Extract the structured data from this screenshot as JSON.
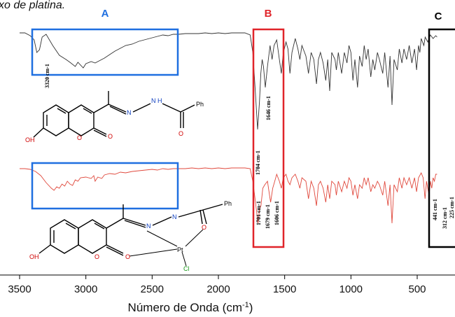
{
  "caption": "xo de platina.",
  "chart_data": {
    "type": "line",
    "xlabel": "Número de Onda (cm-1)",
    "xlim": [
      3500,
      350
    ],
    "x_reversed": true,
    "x_ticks": [
      3500,
      3000,
      2500,
      2000,
      1500,
      1000,
      500
    ],
    "series": [
      {
        "id": "ligand",
        "color": "#333333",
        "points": [
          [
            3500,
            2
          ],
          [
            3460,
            2
          ],
          [
            3420,
            6
          ],
          [
            3390,
            12
          ],
          [
            3370,
            30
          ],
          [
            3350,
            26
          ],
          [
            3330,
            8
          ],
          [
            3300,
            4
          ],
          [
            3250,
            20
          ],
          [
            3200,
            34
          ],
          [
            3150,
            40
          ],
          [
            3120,
            44
          ],
          [
            3080,
            50
          ],
          [
            3060,
            44
          ],
          [
            3020,
            52
          ],
          [
            3000,
            46
          ],
          [
            2960,
            43
          ],
          [
            2930,
            45
          ],
          [
            2900,
            42
          ],
          [
            2860,
            38
          ],
          [
            2820,
            33
          ],
          [
            2780,
            28
          ],
          [
            2740,
            24
          ],
          [
            2700,
            20
          ],
          [
            2650,
            18
          ],
          [
            2600,
            14
          ],
          [
            2560,
            12
          ],
          [
            2500,
            9
          ],
          [
            2460,
            7
          ],
          [
            2420,
            5
          ],
          [
            2380,
            6
          ],
          [
            2340,
            4
          ],
          [
            2300,
            4
          ],
          [
            2250,
            3
          ],
          [
            2200,
            3
          ],
          [
            2150,
            3
          ],
          [
            2100,
            2
          ],
          [
            2050,
            3
          ],
          [
            2000,
            2
          ],
          [
            1950,
            3
          ],
          [
            1900,
            2
          ],
          [
            1850,
            2
          ],
          [
            1800,
            2
          ],
          [
            1760,
            5
          ],
          [
            1740,
            30
          ],
          [
            1720,
            90
          ],
          [
            1704,
            140
          ],
          [
            1690,
            100
          ],
          [
            1680,
            60
          ],
          [
            1670,
            40
          ],
          [
            1660,
            50
          ],
          [
            1646,
            80
          ],
          [
            1630,
            50
          ],
          [
            1610,
            20
          ],
          [
            1595,
            40
          ],
          [
            1580,
            20
          ],
          [
            1560,
            12
          ],
          [
            1540,
            40
          ],
          [
            1525,
            60
          ],
          [
            1510,
            30
          ],
          [
            1490,
            15
          ],
          [
            1475,
            25
          ],
          [
            1460,
            60
          ],
          [
            1445,
            30
          ],
          [
            1420,
            10
          ],
          [
            1400,
            25
          ],
          [
            1385,
            40
          ],
          [
            1370,
            20
          ],
          [
            1340,
            35
          ],
          [
            1320,
            60
          ],
          [
            1300,
            30
          ],
          [
            1280,
            40
          ],
          [
            1260,
            75
          ],
          [
            1245,
            40
          ],
          [
            1230,
            30
          ],
          [
            1210,
            45
          ],
          [
            1190,
            70
          ],
          [
            1175,
            40
          ],
          [
            1160,
            85
          ],
          [
            1145,
            30
          ],
          [
            1120,
            40
          ],
          [
            1110,
            55
          ],
          [
            1095,
            30
          ],
          [
            1070,
            60
          ],
          [
            1050,
            30
          ],
          [
            1030,
            45
          ],
          [
            1015,
            20
          ],
          [
            1000,
            30
          ],
          [
            985,
            70
          ],
          [
            970,
            40
          ],
          [
            950,
            80
          ],
          [
            935,
            35
          ],
          [
            915,
            50
          ],
          [
            900,
            20
          ],
          [
            885,
            40
          ],
          [
            870,
            25
          ],
          [
            850,
            65
          ],
          [
            835,
            40
          ],
          [
            820,
            55
          ],
          [
            800,
            30
          ],
          [
            785,
            40
          ],
          [
            760,
            60
          ],
          [
            745,
            30
          ],
          [
            720,
            80
          ],
          [
            705,
            35
          ],
          [
            690,
            105
          ],
          [
            675,
            40
          ],
          [
            650,
            55
          ],
          [
            635,
            25
          ],
          [
            615,
            45
          ],
          [
            600,
            25
          ],
          [
            580,
            40
          ],
          [
            560,
            20
          ],
          [
            540,
            45
          ],
          [
            520,
            25
          ],
          [
            505,
            55
          ],
          [
            490,
            20
          ],
          [
            480,
            30
          ],
          [
            470,
            10
          ],
          [
            450,
            20
          ],
          [
            440,
            8
          ],
          [
            420,
            15
          ],
          [
            400,
            5
          ],
          [
            380,
            10
          ],
          [
            360,
            6
          ],
          [
            350,
            8
          ]
        ]
      },
      {
        "id": "complex",
        "color": "#e0483c",
        "points": [
          [
            3500,
            2
          ],
          [
            3460,
            2
          ],
          [
            3420,
            3
          ],
          [
            3380,
            6
          ],
          [
            3340,
            12
          ],
          [
            3300,
            22
          ],
          [
            3260,
            30
          ],
          [
            3240,
            33
          ],
          [
            3220,
            28
          ],
          [
            3200,
            30
          ],
          [
            3180,
            24
          ],
          [
            3160,
            27
          ],
          [
            3140,
            20
          ],
          [
            3120,
            24
          ],
          [
            3100,
            26
          ],
          [
            3080,
            18
          ],
          [
            3060,
            20
          ],
          [
            3040,
            15
          ],
          [
            3000,
            14
          ],
          [
            2960,
            16
          ],
          [
            2940,
            12
          ],
          [
            2930,
            20
          ],
          [
            2910,
            14
          ],
          [
            2880,
            16
          ],
          [
            2860,
            11
          ],
          [
            2820,
            9
          ],
          [
            2780,
            10
          ],
          [
            2740,
            7
          ],
          [
            2700,
            8
          ],
          [
            2650,
            6
          ],
          [
            2600,
            5
          ],
          [
            2550,
            4
          ],
          [
            2500,
            3
          ],
          [
            2460,
            4
          ],
          [
            2420,
            2
          ],
          [
            2380,
            3
          ],
          [
            2340,
            2
          ],
          [
            2300,
            2
          ],
          [
            2250,
            2
          ],
          [
            2200,
            1
          ],
          [
            2150,
            2
          ],
          [
            2100,
            1
          ],
          [
            2050,
            2
          ],
          [
            2000,
            1
          ],
          [
            1950,
            2
          ],
          [
            1900,
            1
          ],
          [
            1850,
            1
          ],
          [
            1800,
            1
          ],
          [
            1760,
            2
          ],
          [
            1740,
            20
          ],
          [
            1720,
            50
          ],
          [
            1701,
            80
          ],
          [
            1690,
            60
          ],
          [
            1679,
            55
          ],
          [
            1665,
            30
          ],
          [
            1650,
            25
          ],
          [
            1630,
            20
          ],
          [
            1610,
            45
          ],
          [
            1606,
            50
          ],
          [
            1590,
            30
          ],
          [
            1575,
            20
          ],
          [
            1560,
            10
          ],
          [
            1540,
            20
          ],
          [
            1525,
            30
          ],
          [
            1510,
            15
          ],
          [
            1490,
            10
          ],
          [
            1475,
            20
          ],
          [
            1460,
            25
          ],
          [
            1445,
            15
          ],
          [
            1420,
            10
          ],
          [
            1400,
            20
          ],
          [
            1385,
            30
          ],
          [
            1370,
            15
          ],
          [
            1340,
            20
          ],
          [
            1320,
            45
          ],
          [
            1300,
            20
          ],
          [
            1280,
            30
          ],
          [
            1260,
            55
          ],
          [
            1245,
            25
          ],
          [
            1230,
            20
          ],
          [
            1210,
            30
          ],
          [
            1190,
            50
          ],
          [
            1175,
            25
          ],
          [
            1160,
            45
          ],
          [
            1145,
            20
          ],
          [
            1120,
            25
          ],
          [
            1110,
            40
          ],
          [
            1095,
            20
          ],
          [
            1070,
            35
          ],
          [
            1050,
            20
          ],
          [
            1030,
            30
          ],
          [
            1015,
            15
          ],
          [
            1000,
            20
          ],
          [
            985,
            40
          ],
          [
            970,
            25
          ],
          [
            950,
            45
          ],
          [
            935,
            25
          ],
          [
            915,
            30
          ],
          [
            900,
            15
          ],
          [
            885,
            25
          ],
          [
            870,
            15
          ],
          [
            850,
            35
          ],
          [
            835,
            25
          ],
          [
            820,
            30
          ],
          [
            800,
            20
          ],
          [
            785,
            25
          ],
          [
            760,
            40
          ],
          [
            745,
            20
          ],
          [
            720,
            55
          ],
          [
            705,
            25
          ],
          [
            690,
            80
          ],
          [
            675,
            25
          ],
          [
            650,
            35
          ],
          [
            635,
            15
          ],
          [
            615,
            30
          ],
          [
            600,
            15
          ],
          [
            580,
            25
          ],
          [
            560,
            15
          ],
          [
            540,
            30
          ],
          [
            520,
            15
          ],
          [
            505,
            35
          ],
          [
            490,
            15
          ],
          [
            470,
            8
          ],
          [
            455,
            15
          ],
          [
            441,
            45
          ],
          [
            430,
            20
          ],
          [
            420,
            30
          ],
          [
            410,
            40
          ],
          [
            400,
            20
          ],
          [
            390,
            30
          ],
          [
            380,
            15
          ],
          [
            370,
            20
          ],
          [
            360,
            10
          ],
          [
            350,
            10
          ]
        ]
      }
    ],
    "regions": [
      {
        "label": "A",
        "color": "#1f6fe0"
      },
      {
        "label": "B",
        "color": "#e0242a"
      },
      {
        "label": "C",
        "color": "#000000"
      }
    ],
    "peak_labels": {
      "ligand": [
        "3320 cm-1",
        "1646 cm-1",
        "1704 cm-1"
      ],
      "complex": [
        "1701 cm-1",
        "1679 cm-1",
        "1606 cm-1",
        "441 cm-1",
        "312 cm-1",
        "225 cm-1"
      ]
    }
  },
  "molecules": {
    "ligand": {
      "oh": "OH",
      "o_ring": "O",
      "o_carbonyl": "O",
      "n": "N",
      "nh": "H",
      "n2": "N",
      "ph": "Ph",
      "o_amide": "O"
    },
    "complex": {
      "oh": "OH",
      "o_ring": "O",
      "o_carbonyl": "O",
      "n": "N",
      "n2": "N",
      "ph": "Ph",
      "o_amide": "O",
      "pt": "Pt",
      "cl": "Cl"
    }
  }
}
